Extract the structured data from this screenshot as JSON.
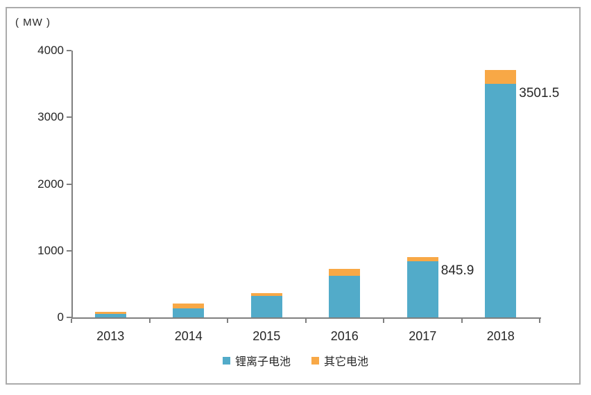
{
  "chart_data": {
    "type": "bar",
    "stacked": true,
    "title": "",
    "unit_label": "( MW )",
    "categories": [
      "2013",
      "2014",
      "2015",
      "2016",
      "2017",
      "2018"
    ],
    "series": [
      {
        "name": "锂离子电池",
        "key": "li-ion",
        "color": "#52ABC9",
        "values": [
          55,
          135,
          325,
          625,
          845.9,
          3501.5
        ]
      },
      {
        "name": "其它电池",
        "key": "other",
        "color": "#F8A846",
        "values": [
          30,
          70,
          35,
          105,
          62,
          205
        ]
      }
    ],
    "ylim": [
      0,
      4000
    ],
    "yticks": [
      0,
      1000,
      2000,
      3000,
      4000
    ],
    "xlabel": "",
    "ylabel": "",
    "grid": false,
    "legend_position": "bottom",
    "axis_color": "#7f7f7f",
    "text_color": "#262626",
    "border_color": "#ababab",
    "annotations": [
      {
        "category": "2017",
        "series_index": 0,
        "text": "845.9"
      },
      {
        "category": "2018",
        "series_index": 0,
        "text": "3501.5"
      }
    ]
  }
}
